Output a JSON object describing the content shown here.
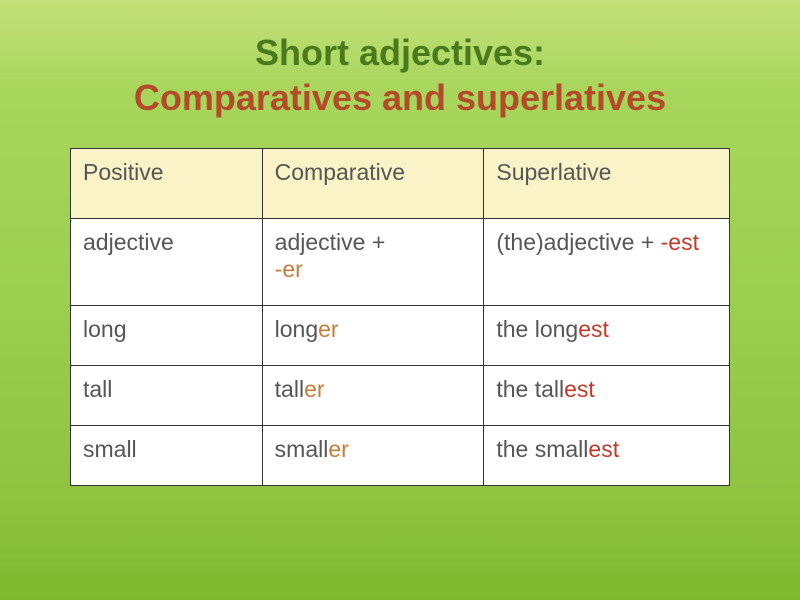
{
  "title": {
    "line1": "Short adjectives:",
    "line2": "Comparatives and superlatives"
  },
  "table": {
    "header_bg": "#f9f3c7",
    "cell_bg": "#ffffff",
    "border_color": "#333333",
    "text_color": "#565656",
    "er_color": "#c87c3a",
    "est_color": "#c23a2a",
    "columns": [
      "Positive",
      "Comparative",
      "Superlative"
    ],
    "rule_row": {
      "positive": "adjective",
      "comparative_base": "adjective + ",
      "comparative_suffix": "-er",
      "superlative_base": "(the)adjective + ",
      "superlative_suffix": "-est"
    },
    "rows": [
      {
        "positive": "long",
        "comp_base": "long",
        "comp_suf": "er",
        "sup_prefix": "the ",
        "sup_base": "long",
        "sup_suf": "est"
      },
      {
        "positive": "tall",
        "comp_base": "tall",
        "comp_suf": "er",
        "sup_prefix": "the ",
        "sup_base": "tall",
        "sup_suf": "est"
      },
      {
        "positive": "small",
        "comp_base": "small",
        "comp_suf": "er",
        "sup_prefix": "the ",
        "sup_base": "small",
        "sup_suf": "est"
      }
    ]
  }
}
